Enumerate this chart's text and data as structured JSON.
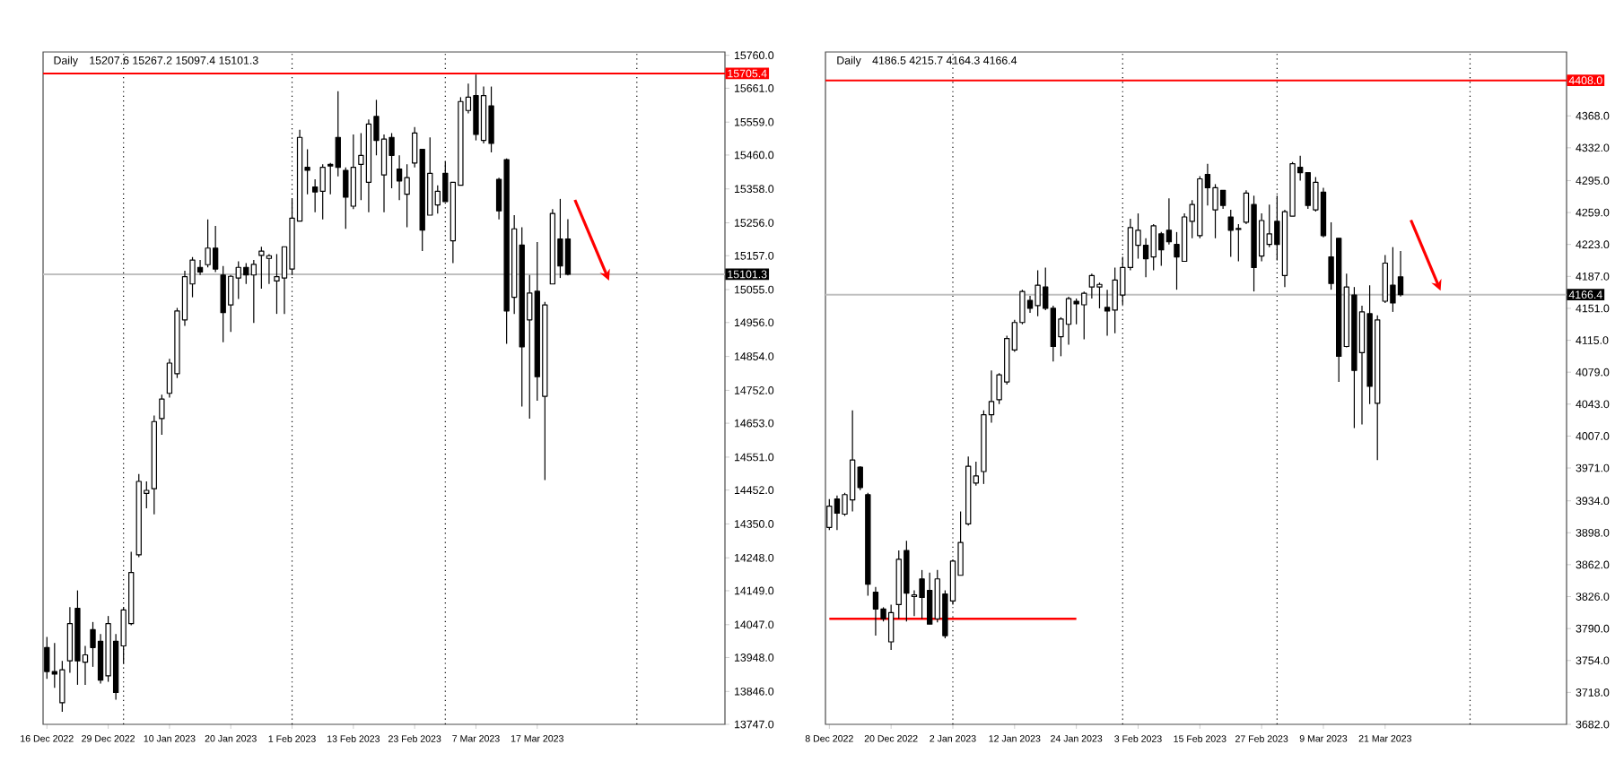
{
  "chart_data": [
    {
      "type": "candlestick",
      "title": "Daily",
      "subtitle": "15207.6 15267.2 15097.4 15101.3",
      "categories": [
        "16 Dec 2022",
        null,
        null,
        null,
        null,
        null,
        null,
        null,
        "29 Dec 2022",
        null,
        null,
        null,
        null,
        null,
        null,
        null,
        "10 Jan 2023",
        null,
        null,
        null,
        null,
        null,
        null,
        null,
        "20 Jan 2023",
        null,
        null,
        null,
        null,
        null,
        null,
        null,
        "1 Feb 2023",
        null,
        null,
        null,
        null,
        null,
        null,
        null,
        "13 Feb 2023",
        null,
        null,
        null,
        null,
        null,
        null,
        null,
        "23 Feb 2023",
        null,
        null,
        null,
        null,
        null,
        null,
        null,
        "7 Mar 2023",
        null,
        null,
        null,
        null,
        null,
        null,
        null,
        "17 Mar 2023",
        null,
        null,
        null,
        null,
        null,
        null,
        null,
        null,
        null,
        null,
        null,
        null,
        null,
        null,
        null,
        null,
        null,
        null,
        null,
        null,
        null,
        null,
        null,
        null
      ],
      "series": [
        {
          "type": "candlestick",
          "color": "#000000",
          "ohlc": [
            [
              13978,
              14010,
              13884,
              13906
            ],
            [
              13906,
              13992,
              13857,
              13898
            ],
            [
              13812,
              13938,
              13785,
              13911
            ],
            [
              13938,
              14100,
              13902,
              14050
            ],
            [
              14096,
              14150,
              13866,
              13938
            ],
            [
              13934,
              13983,
              13866,
              13956
            ],
            [
              14032,
              14055,
              13920,
              13978
            ],
            [
              13997,
              14019,
              13870,
              13880
            ],
            [
              13893,
              14073,
              13875,
              14050
            ],
            [
              13997,
              14019,
              13821,
              13843
            ],
            [
              13983,
              14100,
              13929,
              14091
            ],
            [
              14050,
              14266,
              14045,
              14204
            ],
            [
              14257,
              14500,
              14250,
              14478
            ],
            [
              14442,
              14478,
              14397,
              14451
            ],
            [
              14456,
              14676,
              14379,
              14658
            ],
            [
              14667,
              14739,
              14618,
              14726
            ],
            [
              14743,
              14847,
              14730,
              14834
            ],
            [
              14802,
              15000,
              14789,
              14991
            ],
            [
              14964,
              15112,
              14946,
              15094
            ],
            [
              15072,
              15153,
              15032,
              15144
            ],
            [
              15122,
              15144,
              15099,
              15108
            ],
            [
              15130,
              15266,
              15122,
              15180
            ],
            [
              15180,
              15247,
              15108,
              15117
            ],
            [
              15099,
              15126,
              14897,
              14986
            ],
            [
              15009,
              15099,
              14928,
              15095
            ],
            [
              15090,
              15140,
              15027,
              15122
            ],
            [
              15122,
              15135,
              15072,
              15099
            ],
            [
              15099,
              15144,
              14955,
              15131
            ],
            [
              15158,
              15184,
              15058,
              15171
            ],
            [
              15149,
              15162,
              15072,
              15157
            ],
            [
              15081,
              15162,
              14982,
              15094
            ],
            [
              15090,
              15184,
              14982,
              15184
            ],
            [
              15117,
              15328,
              15099,
              15270
            ],
            [
              15261,
              15536,
              15261,
              15513
            ],
            [
              15423,
              15477,
              15342,
              15414
            ],
            [
              15364,
              15387,
              15288,
              15349
            ],
            [
              15351,
              15432,
              15266,
              15423
            ],
            [
              15432,
              15436,
              15342,
              15427
            ],
            [
              15513,
              15652,
              15396,
              15423
            ],
            [
              15414,
              15423,
              15238,
              15333
            ],
            [
              15306,
              15522,
              15297,
              15423
            ],
            [
              15432,
              15526,
              15324,
              15459
            ],
            [
              15378,
              15567,
              15288,
              15553
            ],
            [
              15576,
              15626,
              15459,
              15504
            ],
            [
              15400,
              15522,
              15288,
              15508
            ],
            [
              15513,
              15526,
              15360,
              15459
            ],
            [
              15418,
              15459,
              15324,
              15382
            ],
            [
              15342,
              15432,
              15243,
              15392
            ],
            [
              15436,
              15544,
              15423,
              15526
            ],
            [
              15477,
              15477,
              15171,
              15234
            ],
            [
              15279,
              15513,
              15279,
              15405
            ],
            [
              15310,
              15369,
              15284,
              15351
            ],
            [
              15405,
              15441,
              15320,
              15320
            ],
            [
              15202,
              15378,
              15135,
              15378
            ],
            [
              15369,
              15634,
              15369,
              15621
            ],
            [
              15594,
              15675,
              15585,
              15634
            ],
            [
              15639,
              15702,
              15504,
              15522
            ],
            [
              15504,
              15666,
              15495,
              15639
            ],
            [
              15608,
              15666,
              15468,
              15495
            ],
            [
              15387,
              15392,
              15266,
              15292
            ],
            [
              15446,
              15450,
              14892,
              14991
            ],
            [
              15032,
              15279,
              14982,
              15238
            ],
            [
              15189,
              15243,
              14703,
              14883
            ],
            [
              14964,
              15099,
              14667,
              15045
            ],
            [
              15050,
              15198,
              14721,
              14793
            ],
            [
              14734,
              15018,
              14482,
              15009
            ],
            [
              15072,
              15297,
              15072,
              15284
            ],
            [
              15207,
              15328,
              15090,
              15126
            ],
            [
              15207.6,
              15267.2,
              15097.4,
              15101.3
            ],
            null,
            null,
            null,
            null,
            null,
            null,
            null,
            null,
            null,
            null,
            null,
            null,
            null,
            null,
            null,
            null,
            null,
            null,
            null,
            null
          ]
        }
      ],
      "grid": "x",
      "ylim": [
        13747,
        15770
      ],
      "yticks": [
        {
          "value": 13747,
          "label": "13747.0"
        },
        {
          "value": 13846,
          "label": "13846.0"
        },
        {
          "value": 13948,
          "label": "13948.0"
        },
        {
          "value": 14047,
          "label": "14047.0"
        },
        {
          "value": 14149,
          "label": "14149.0"
        },
        {
          "value": 14248,
          "label": "14248.0"
        },
        {
          "value": 14350,
          "label": "14350.0"
        },
        {
          "value": 14452,
          "label": "14452.0"
        },
        {
          "value": 14551,
          "label": "14551.0"
        },
        {
          "value": 14653,
          "label": "14653.0"
        },
        {
          "value": 14752,
          "label": "14752.0"
        },
        {
          "value": 14854,
          "label": "14854.0"
        },
        {
          "value": 14956,
          "label": "14956.0"
        },
        {
          "value": 15055,
          "label": "15055.0"
        },
        {
          "value": 15157,
          "label": "15157.0"
        },
        {
          "value": 15256,
          "label": "15256.0"
        },
        {
          "value": 15358,
          "label": "15358.0"
        },
        {
          "value": 15460,
          "label": "15460.0"
        },
        {
          "value": 15559,
          "label": "15559.0"
        },
        {
          "value": 15661,
          "label": "15661.0"
        },
        {
          "value": 15760,
          "label": "15760.0"
        }
      ],
      "ref_lines": [
        {
          "axis": "y",
          "value": 15101.3,
          "label": "15101.3",
          "color": "#c0c0c0"
        },
        {
          "axis": "y",
          "value": 15705.4,
          "label": "15705.4",
          "color": "#ff0000"
        }
      ]
    },
    {
      "type": "candlestick",
      "title": "Daily",
      "subtitle": "4186.5 4215.7 4164.3 4166.4",
      "categories": [
        "8 Dec 2022",
        null,
        null,
        null,
        null,
        null,
        null,
        null,
        "20 Dec 2022",
        null,
        null,
        null,
        null,
        null,
        null,
        null,
        "2 Jan 2023",
        null,
        null,
        null,
        null,
        null,
        null,
        null,
        "12 Jan 2023",
        null,
        null,
        null,
        null,
        null,
        null,
        null,
        "24 Jan 2023",
        null,
        null,
        null,
        null,
        null,
        null,
        null,
        "3 Feb 2023",
        null,
        null,
        null,
        null,
        null,
        null,
        null,
        "15 Feb 2023",
        null,
        null,
        null,
        null,
        null,
        null,
        null,
        "27 Feb 2023",
        null,
        null,
        null,
        null,
        null,
        null,
        null,
        "9 Mar 2023",
        null,
        null,
        null,
        null,
        null,
        null,
        null,
        "21 Mar 2023",
        null,
        null,
        null,
        null,
        null,
        null,
        null,
        null,
        null,
        null,
        null,
        null,
        null,
        null,
        null,
        null,
        null,
        null,
        null,
        null,
        null,
        null,
        null
      ],
      "series": [
        {
          "type": "line",
          "color": "#ff0000",
          "values": [
            3801,
            3801,
            3801,
            3801,
            3801,
            3801,
            3801,
            3801,
            3801,
            3801,
            3801,
            3801,
            3801,
            3801,
            3801,
            3801,
            3801,
            3801,
            3801,
            3801,
            3801,
            3801,
            3801,
            3801,
            3801,
            3801,
            3801,
            3801,
            3801,
            3801,
            3801,
            3801,
            3801,
            null,
            null,
            null,
            null,
            null,
            null,
            null,
            null,
            null,
            null,
            null,
            null,
            null,
            null,
            null,
            null,
            null,
            null,
            null,
            null,
            null,
            null,
            null,
            null,
            null,
            null,
            null,
            null,
            null,
            null,
            null,
            null,
            null,
            null,
            null,
            null,
            null,
            null,
            null,
            null,
            null,
            null,
            null,
            null,
            null,
            null,
            null,
            null,
            null,
            null,
            null,
            null,
            null,
            null,
            null,
            null,
            null,
            null,
            null,
            null,
            null,
            null,
            null
          ]
        },
        {
          "type": "candlestick",
          "color": "#000000",
          "ohlc": [
            [
              3904,
              3936,
              3901,
              3928
            ],
            [
              3936,
              3940,
              3901,
              3920
            ],
            [
              3919,
              3943,
              3917,
              3941
            ],
            [
              3935,
              4036,
              3922,
              3980
            ],
            [
              3972,
              3973,
              3946,
              3949
            ],
            [
              3941,
              3943,
              3827,
              3840
            ],
            [
              3831,
              3837,
              3782,
              3812
            ],
            [
              3812,
              3814,
              3798,
              3801
            ],
            [
              3775,
              3817,
              3766,
              3808
            ],
            [
              3817,
              3878,
              3801,
              3868
            ],
            [
              3878,
              3889,
              3798,
              3830
            ],
            [
              3826,
              3833,
              3804,
              3828
            ],
            [
              3846,
              3856,
              3801,
              3825
            ],
            [
              3833,
              3853,
              3795,
              3795
            ],
            [
              3801,
              3856,
              3797,
              3846
            ],
            [
              3829,
              3833,
              3779,
              3782
            ],
            [
              3821,
              3868,
              3817,
              3866
            ],
            [
              3850,
              3922,
              3850,
              3887
            ],
            [
              3908,
              3984,
              3906,
              3973
            ],
            [
              3954,
              3978,
              3951,
              3962
            ],
            [
              3967,
              4036,
              3953,
              4031
            ],
            [
              4031,
              4081,
              4022,
              4046
            ],
            [
              4048,
              4078,
              4043,
              4076
            ],
            [
              4068,
              4120,
              4065,
              4117
            ],
            [
              4104,
              4138,
              4102,
              4135
            ],
            [
              4135,
              4172,
              4133,
              4170
            ],
            [
              4160,
              4165,
              4146,
              4151
            ],
            [
              4154,
              4194,
              4142,
              4177
            ],
            [
              4175,
              4197,
              4149,
              4151
            ],
            [
              4151,
              4154,
              4091,
              4108
            ],
            [
              4119,
              4141,
              4097,
              4139
            ],
            [
              4133,
              4164,
              4110,
              4162
            ],
            [
              4159,
              4162,
              4133,
              4156
            ],
            [
              4155,
              4170,
              4116,
              4168
            ],
            [
              4175,
              4190,
              4162,
              4188
            ],
            [
              4175,
              4180,
              4151,
              4178
            ],
            [
              4152,
              4172,
              4120,
              4148
            ],
            [
              4149,
              4197,
              4123,
              4183
            ],
            [
              4166,
              4209,
              4155,
              4197
            ],
            [
              4197,
              4252,
              4194,
              4242
            ],
            [
              4222,
              4258,
              4207,
              4239
            ],
            [
              4222,
              4230,
              4186,
              4207
            ],
            [
              4209,
              4246,
              4194,
              4244
            ],
            [
              4235,
              4237,
              4199,
              4217
            ],
            [
              4239,
              4275,
              4223,
              4226
            ],
            [
              4223,
              4237,
              4172,
              4209
            ],
            [
              4204,
              4258,
              4204,
              4254
            ],
            [
              4249,
              4273,
              4230,
              4268
            ],
            [
              4233,
              4300,
              4230,
              4297
            ],
            [
              4302,
              4314,
              4267,
              4287
            ],
            [
              4262,
              4291,
              4230,
              4287
            ],
            [
              4284,
              4284,
              4263,
              4267
            ],
            [
              4254,
              4262,
              4209,
              4239
            ],
            [
              4240,
              4246,
              4204,
              4241
            ],
            [
              4248,
              4284,
              4246,
              4281
            ],
            [
              4268,
              4278,
              4170,
              4197
            ],
            [
              4210,
              4258,
              4204,
              4250
            ],
            [
              4223,
              4268,
              4220,
              4235
            ],
            [
              4249,
              4278,
              4205,
              4223
            ],
            [
              4188,
              4262,
              4175,
              4260
            ],
            [
              4255,
              4316,
              4255,
              4314
            ],
            [
              4310,
              4323,
              4295,
              4304
            ],
            [
              4304,
              4304,
              4263,
              4267
            ],
            [
              4262,
              4299,
              4260,
              4293
            ],
            [
              4282,
              4287,
              4231,
              4233
            ],
            [
              4209,
              4248,
              4172,
              4179
            ],
            [
              4230,
              4230,
              4068,
              4097
            ],
            [
              4108,
              4190,
              4107,
              4175
            ],
            [
              4166,
              4175,
              4016,
              4081
            ],
            [
              4101,
              4154,
              4020,
              4147
            ],
            [
              4145,
              4177,
              4043,
              4063
            ],
            [
              4044,
              4143,
              3980,
              4138
            ],
            [
              4159,
              4211,
              4157,
              4202
            ],
            [
              4177,
              4220,
              4147,
              4157
            ],
            [
              4186.5,
              4215.7,
              4164.3,
              4166.4
            ],
            null,
            null,
            null,
            null,
            null,
            null,
            null,
            null,
            null,
            null,
            null,
            null,
            null,
            null,
            null,
            null,
            null,
            null,
            null,
            null,
            null
          ]
        }
      ],
      "grid": "x",
      "ylim": [
        3682,
        4440
      ],
      "yticks": [
        {
          "value": 3682,
          "label": "3682.0"
        },
        {
          "value": 3718,
          "label": "3718.0"
        },
        {
          "value": 3754,
          "label": "3754.0"
        },
        {
          "value": 3790,
          "label": "3790.0"
        },
        {
          "value": 3826,
          "label": "3826.0"
        },
        {
          "value": 3862,
          "label": "3862.0"
        },
        {
          "value": 3898,
          "label": "3898.0"
        },
        {
          "value": 3934,
          "label": "3934.0"
        },
        {
          "value": 3971,
          "label": "3971.0"
        },
        {
          "value": 4007,
          "label": "4007.0"
        },
        {
          "value": 4043,
          "label": "4043.0"
        },
        {
          "value": 4079,
          "label": "4079.0"
        },
        {
          "value": 4115,
          "label": "4115.0"
        },
        {
          "value": 4151,
          "label": "4151.0"
        },
        {
          "value": 4187,
          "label": "4187.0"
        },
        {
          "value": 4223,
          "label": "4223.0"
        },
        {
          "value": 4259,
          "label": "4259.0"
        },
        {
          "value": 4295,
          "label": "4295.0"
        },
        {
          "value": 4332,
          "label": "4332.0"
        },
        {
          "value": 4368,
          "label": "4368.0"
        }
      ],
      "ref_lines": [
        {
          "axis": "y",
          "value": 4166.4,
          "label": "4166.4",
          "color": "#c0c0c0"
        },
        {
          "axis": "y",
          "value": 4408,
          "label": "4408.0",
          "color": "#ff0000"
        }
      ]
    }
  ]
}
